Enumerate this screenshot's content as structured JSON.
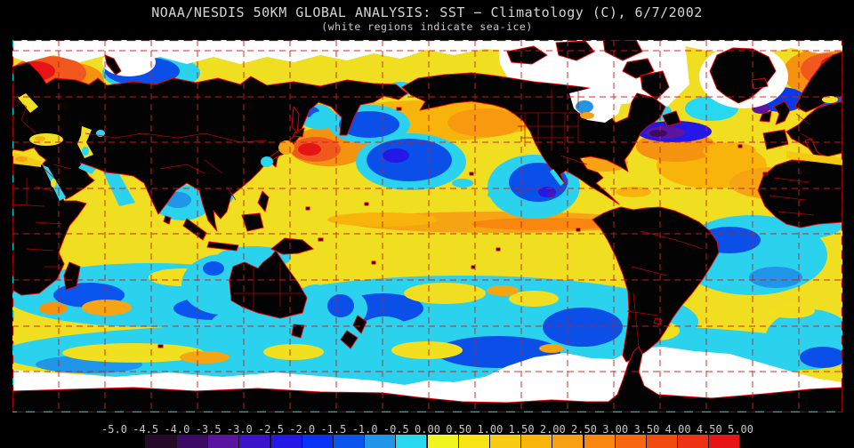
{
  "header": {
    "title": "NOAA/NESDIS 50KM GLOBAL ANALYSIS: SST − Climatology (C), 6/7/2002",
    "subtitle": "(white regions indicate sea-ice)"
  },
  "colorbar": {
    "units": "C",
    "min": -5.0,
    "max": 5.0,
    "step": 0.5,
    "tick_labels": [
      "-5.0",
      "-4.5",
      "-4.0",
      "-3.5",
      "-3.0",
      "-2.5",
      "-2.0",
      "-1.5",
      "-1.0",
      "-0.5",
      "0.00",
      "0.50",
      "1.00",
      "1.50",
      "2.00",
      "2.50",
      "3.00",
      "3.50",
      "4.00",
      "4.50",
      "5.00"
    ],
    "cell_colors": [
      "#000000",
      "#250929",
      "#3c0a64",
      "#5a14a0",
      "#3c14cc",
      "#2318e6",
      "#0a32f5",
      "#0a55ee",
      "#2196e8",
      "#28d7f0",
      "#f0f520",
      "#f8e414",
      "#f8cb14",
      "#f8b40a",
      "#f8a014",
      "#f8860f",
      "#f8660f",
      "#f04c0f",
      "#ee3214",
      "#e61414"
    ]
  },
  "map": {
    "description": "global sea-surface-temperature anomaly field, Pacific-centered",
    "sea_ice_color": "#ffffff",
    "land_color": "#030303",
    "coastline_color": "#e00000",
    "gridline_color": "#c81e1e",
    "frame_colors": [
      "#a80000",
      "#00c4c4"
    ],
    "ocean_base_color": "#efdf20"
  }
}
